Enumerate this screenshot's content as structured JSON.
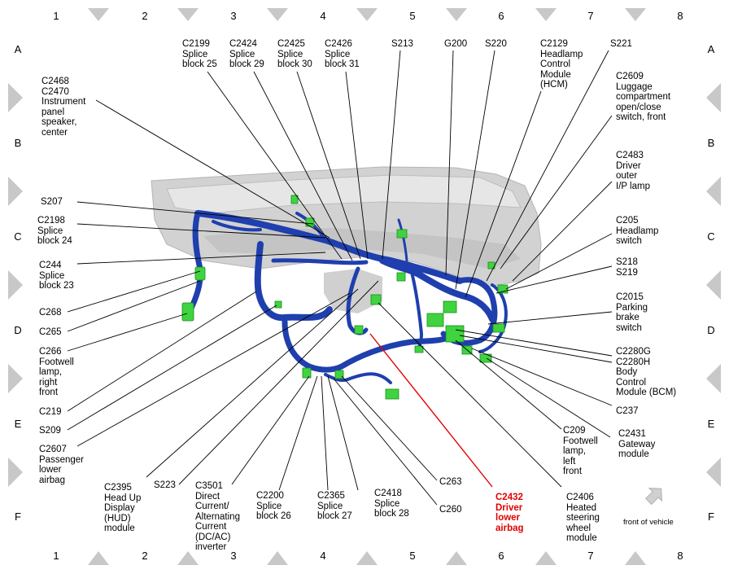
{
  "grid": {
    "columns": [
      "1",
      "2",
      "3",
      "4",
      "5",
      "6",
      "7",
      "8"
    ],
    "rows": [
      "A",
      "B",
      "C",
      "D",
      "E",
      "F"
    ]
  },
  "labels": [
    {
      "id": "c2199",
      "text": "C2199\nSplice\nblock 25"
    },
    {
      "id": "c2424",
      "text": "C2424\nSplice\nblock 29"
    },
    {
      "id": "c2425",
      "text": "C2425\nSplice\nblock 30"
    },
    {
      "id": "c2426",
      "text": "C2426\nSplice\nblock 31"
    },
    {
      "id": "s213",
      "text": "S213"
    },
    {
      "id": "g200",
      "text": "G200"
    },
    {
      "id": "s220",
      "text": "S220"
    },
    {
      "id": "c2129",
      "text": "C2129\nHeadlamp\nControl\nModule\n(HCM)"
    },
    {
      "id": "s221",
      "text": "S221"
    },
    {
      "id": "c2468",
      "text": "C2468\nC2470\nInstrument\npanel\nspeaker,\ncenter"
    },
    {
      "id": "c2609",
      "text": "C2609\nLuggage\ncompartment\nopen/close\nswitch, front"
    },
    {
      "id": "c2483",
      "text": "C2483\nDriver\nouter\nI/P lamp"
    },
    {
      "id": "s207",
      "text": "S207"
    },
    {
      "id": "c2198",
      "text": "C2198\nSplice\nblock 24"
    },
    {
      "id": "c205",
      "text": "C205\nHeadlamp\nswitch"
    },
    {
      "id": "c244",
      "text": "C244\nSplice\nblock 23"
    },
    {
      "id": "s218",
      "text": "S218\nS219"
    },
    {
      "id": "c268",
      "text": "C268"
    },
    {
      "id": "c2015",
      "text": "C2015\nParking\nbrake\nswitch"
    },
    {
      "id": "c265",
      "text": "C265"
    },
    {
      "id": "c266",
      "text": "C266\nFootwell\nlamp,\nright\nfront"
    },
    {
      "id": "c2280",
      "text": "C2280G\nC2280H\nBody\nControl\nModule (BCM)"
    },
    {
      "id": "c237",
      "text": "C237"
    },
    {
      "id": "c219",
      "text": "C219"
    },
    {
      "id": "s209",
      "text": "S209"
    },
    {
      "id": "c209",
      "text": "C209\nFootwell\nlamp,\nleft\nfront"
    },
    {
      "id": "c2431",
      "text": "C2431\nGateway\nmodule"
    },
    {
      "id": "c2607",
      "text": "C2607\nPassenger\nlower\nairbag"
    },
    {
      "id": "c263",
      "text": "C263"
    },
    {
      "id": "c2395",
      "text": "C2395\nHead Up\nDisplay\n(HUD)\nmodule"
    },
    {
      "id": "s223",
      "text": "S223"
    },
    {
      "id": "c3501",
      "text": "C3501\nDirect\nCurrent/\nAlternating\nCurrent\n(DC/AC)\ninverter"
    },
    {
      "id": "c2200",
      "text": "C2200\nSplice\nblock 26"
    },
    {
      "id": "c2365",
      "text": "C2365\nSplice\nblock 27"
    },
    {
      "id": "c2418",
      "text": "C2418\nSplice\nblock 28"
    },
    {
      "id": "c260",
      "text": "C260"
    },
    {
      "id": "c2432",
      "text": "C2432\nDriver\nlower\nairbag",
      "highlight": "#e00000"
    },
    {
      "id": "c2406",
      "text": "C2406\nHeated\nsteering\nwheel\nmodule"
    }
  ],
  "orientation": {
    "text": "front of vehicle"
  },
  "colors": {
    "harness": "#1f3fae",
    "connector": "#3fd43f",
    "dash": "#c9c9c9",
    "highlight_line": "#e00000",
    "marker": "#c8c8c8"
  }
}
